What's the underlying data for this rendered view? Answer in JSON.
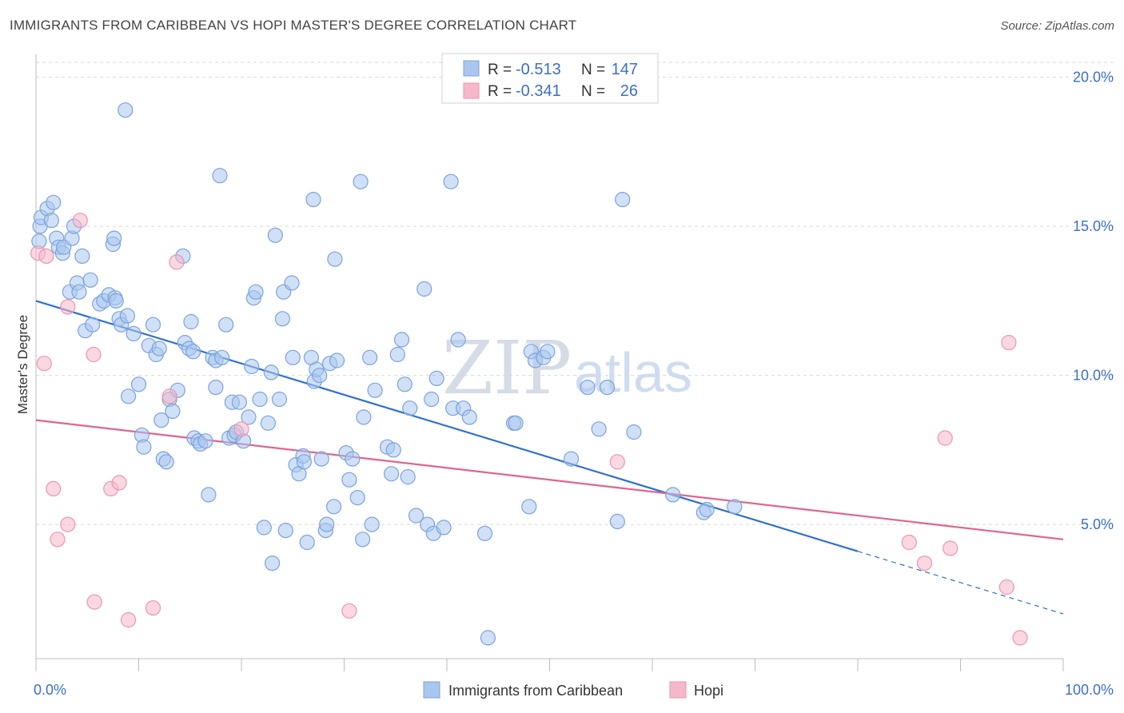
{
  "title": "IMMIGRANTS FROM CARIBBEAN VS HOPI MASTER'S DEGREE CORRELATION CHART",
  "source": "Source: ZipAtlas.com",
  "watermark": {
    "zip": "ZIP",
    "atlas": "atlas"
  },
  "legend_top": {
    "rows": [
      {
        "r_label": "R =",
        "r_value": "-0.513",
        "n_label": "N =",
        "n_value": "147"
      },
      {
        "r_label": "R =",
        "r_value": "-0.341",
        "n_label": "N =",
        "n_value": "26"
      }
    ]
  },
  "colors": {
    "blue_fill": "#aac6ee",
    "blue_stroke": "#7aa3dd",
    "blue_line": "#2f6fd0",
    "pink_fill": "#f5b8cb",
    "pink_stroke": "#ee93b2",
    "pink_line": "#e0648f",
    "grid": "#d9d9d9",
    "axis_text": "#3b6fc4"
  },
  "chart_data": {
    "type": "scatter",
    "title": "IMMIGRANTS FROM CARIBBEAN VS HOPI MASTER'S DEGREE CORRELATION CHART",
    "xlabel": "",
    "ylabel": "Master's Degree",
    "xlim": [
      0,
      100
    ],
    "ylim": [
      0.5,
      20.5
    ],
    "x_tick_labels": [
      "0.0%",
      "100.0%"
    ],
    "y_ticks": [
      5,
      10,
      15,
      20
    ],
    "y_tick_labels": [
      "5.0%",
      "10.0%",
      "15.0%",
      "20.0%"
    ],
    "grid": true,
    "legend_position": "bottom",
    "series": [
      {
        "name": "Immigrants from Caribbean",
        "color": "#aac6ee",
        "trend": {
          "x0": 0,
          "y0": 12.5,
          "x1": 80,
          "y1": 4.1,
          "dashed_to_x": 100,
          "dashed_to_y": 2.0
        },
        "points": [
          [
            0.3,
            14.5
          ],
          [
            0.4,
            15.0
          ],
          [
            0.5,
            15.3
          ],
          [
            1.1,
            15.6
          ],
          [
            1.5,
            15.2
          ],
          [
            1.7,
            15.8
          ],
          [
            2.0,
            14.6
          ],
          [
            2.2,
            14.3
          ],
          [
            2.6,
            14.1
          ],
          [
            2.7,
            14.3
          ],
          [
            3.5,
            14.6
          ],
          [
            3.7,
            15.0
          ],
          [
            3.3,
            12.8
          ],
          [
            4.0,
            13.1
          ],
          [
            4.2,
            12.8
          ],
          [
            4.5,
            14.0
          ],
          [
            4.8,
            11.5
          ],
          [
            5.3,
            13.2
          ],
          [
            5.5,
            11.7
          ],
          [
            6.2,
            12.4
          ],
          [
            6.6,
            12.5
          ],
          [
            7.1,
            12.7
          ],
          [
            7.5,
            14.4
          ],
          [
            7.6,
            14.6
          ],
          [
            7.7,
            12.6
          ],
          [
            7.8,
            12.5
          ],
          [
            8.1,
            11.9
          ],
          [
            8.3,
            11.7
          ],
          [
            8.9,
            12.0
          ],
          [
            9.0,
            9.3
          ],
          [
            9.5,
            11.4
          ],
          [
            10.0,
            9.7
          ],
          [
            10.3,
            8.0
          ],
          [
            10.5,
            7.6
          ],
          [
            11.0,
            11.0
          ],
          [
            11.4,
            11.7
          ],
          [
            11.7,
            10.7
          ],
          [
            12.0,
            10.9
          ],
          [
            12.2,
            8.5
          ],
          [
            12.4,
            7.2
          ],
          [
            12.7,
            7.1
          ],
          [
            13.0,
            9.2
          ],
          [
            13.3,
            8.8
          ],
          [
            13.8,
            9.5
          ],
          [
            14.5,
            11.1
          ],
          [
            14.9,
            10.9
          ],
          [
            15.1,
            11.8
          ],
          [
            15.3,
            10.8
          ],
          [
            15.4,
            7.9
          ],
          [
            15.8,
            7.8
          ],
          [
            16.0,
            7.7
          ],
          [
            16.5,
            7.8
          ],
          [
            16.8,
            6.0
          ],
          [
            17.2,
            10.6
          ],
          [
            17.5,
            10.5
          ],
          [
            17.5,
            9.6
          ],
          [
            18.1,
            10.6
          ],
          [
            18.5,
            11.7
          ],
          [
            18.8,
            7.9
          ],
          [
            19.1,
            9.1
          ],
          [
            19.3,
            8.0
          ],
          [
            19.5,
            8.1
          ],
          [
            19.8,
            9.1
          ],
          [
            20.2,
            7.8
          ],
          [
            20.7,
            8.6
          ],
          [
            21.0,
            10.3
          ],
          [
            21.2,
            12.6
          ],
          [
            21.4,
            12.8
          ],
          [
            21.8,
            9.2
          ],
          [
            22.2,
            4.9
          ],
          [
            22.6,
            8.4
          ],
          [
            22.9,
            10.1
          ],
          [
            23.3,
            14.7
          ],
          [
            23.0,
            3.7
          ],
          [
            23.7,
            9.2
          ],
          [
            24.0,
            11.9
          ],
          [
            24.1,
            12.8
          ],
          [
            24.3,
            4.8
          ],
          [
            24.9,
            13.1
          ],
          [
            25.0,
            10.6
          ],
          [
            25.3,
            7.0
          ],
          [
            25.6,
            6.7
          ],
          [
            26.0,
            7.3
          ],
          [
            26.1,
            7.1
          ],
          [
            26.4,
            4.4
          ],
          [
            26.8,
            10.6
          ],
          [
            27.1,
            9.8
          ],
          [
            27.3,
            10.2
          ],
          [
            27.6,
            10.0
          ],
          [
            27.8,
            7.2
          ],
          [
            28.2,
            4.8
          ],
          [
            28.3,
            5.0
          ],
          [
            28.6,
            10.4
          ],
          [
            29.0,
            5.6
          ],
          [
            29.1,
            13.9
          ],
          [
            29.3,
            10.5
          ],
          [
            30.2,
            7.4
          ],
          [
            30.5,
            6.5
          ],
          [
            30.8,
            7.2
          ],
          [
            31.3,
            5.9
          ],
          [
            31.8,
            4.5
          ],
          [
            31.9,
            8.6
          ],
          [
            32.5,
            10.6
          ],
          [
            32.7,
            5.0
          ],
          [
            33.0,
            9.5
          ],
          [
            34.2,
            7.6
          ],
          [
            34.6,
            6.7
          ],
          [
            34.8,
            7.5
          ],
          [
            35.2,
            10.7
          ],
          [
            35.6,
            11.2
          ],
          [
            35.9,
            9.7
          ],
          [
            36.2,
            6.6
          ],
          [
            36.4,
            8.9
          ],
          [
            37.0,
            5.3
          ],
          [
            37.8,
            12.9
          ],
          [
            38.1,
            5.0
          ],
          [
            38.5,
            9.2
          ],
          [
            38.7,
            4.7
          ],
          [
            39.0,
            9.9
          ],
          [
            39.7,
            4.9
          ],
          [
            40.6,
            8.9
          ],
          [
            41.1,
            11.2
          ],
          [
            41.6,
            8.9
          ],
          [
            42.2,
            8.6
          ],
          [
            43.7,
            4.7
          ],
          [
            44.0,
            1.2
          ],
          [
            46.5,
            8.4
          ],
          [
            46.7,
            8.4
          ],
          [
            48.0,
            5.6
          ],
          [
            48.2,
            10.8
          ],
          [
            48.6,
            10.5
          ],
          [
            49.4,
            10.6
          ],
          [
            49.8,
            10.8
          ],
          [
            52.1,
            7.2
          ],
          [
            53.7,
            9.6
          ],
          [
            54.8,
            8.2
          ],
          [
            55.6,
            9.6
          ],
          [
            56.6,
            5.1
          ],
          [
            57.1,
            15.9
          ],
          [
            58.2,
            8.1
          ],
          [
            62.0,
            6.0
          ],
          [
            65.0,
            5.4
          ],
          [
            65.3,
            5.5
          ],
          [
            68.0,
            5.6
          ],
          [
            17.9,
            16.7
          ],
          [
            27.0,
            15.9
          ],
          [
            31.6,
            16.5
          ],
          [
            40.4,
            16.5
          ],
          [
            14.3,
            14.0
          ],
          [
            8.7,
            18.9
          ]
        ]
      },
      {
        "name": "Hopi",
        "color": "#f5b8cb",
        "trend": {
          "x0": 0,
          "y0": 8.5,
          "x1": 100,
          "y1": 4.5
        },
        "points": [
          [
            0.2,
            14.1
          ],
          [
            1.0,
            14.0
          ],
          [
            0.8,
            10.4
          ],
          [
            1.7,
            6.2
          ],
          [
            2.1,
            4.5
          ],
          [
            3.1,
            12.3
          ],
          [
            3.1,
            5.0
          ],
          [
            4.3,
            15.2
          ],
          [
            5.7,
            2.4
          ],
          [
            5.6,
            10.7
          ],
          [
            7.3,
            6.2
          ],
          [
            8.1,
            6.4
          ],
          [
            9.0,
            1.8
          ],
          [
            11.4,
            2.2
          ],
          [
            13.0,
            9.3
          ],
          [
            13.7,
            13.8
          ],
          [
            20.0,
            8.2
          ],
          [
            30.5,
            2.1
          ],
          [
            56.6,
            7.1
          ],
          [
            85.0,
            4.4
          ],
          [
            86.5,
            3.7
          ],
          [
            88.5,
            7.9
          ],
          [
            89.0,
            4.2
          ],
          [
            94.5,
            2.9
          ],
          [
            94.7,
            11.1
          ],
          [
            95.8,
            1.2
          ]
        ]
      }
    ]
  }
}
